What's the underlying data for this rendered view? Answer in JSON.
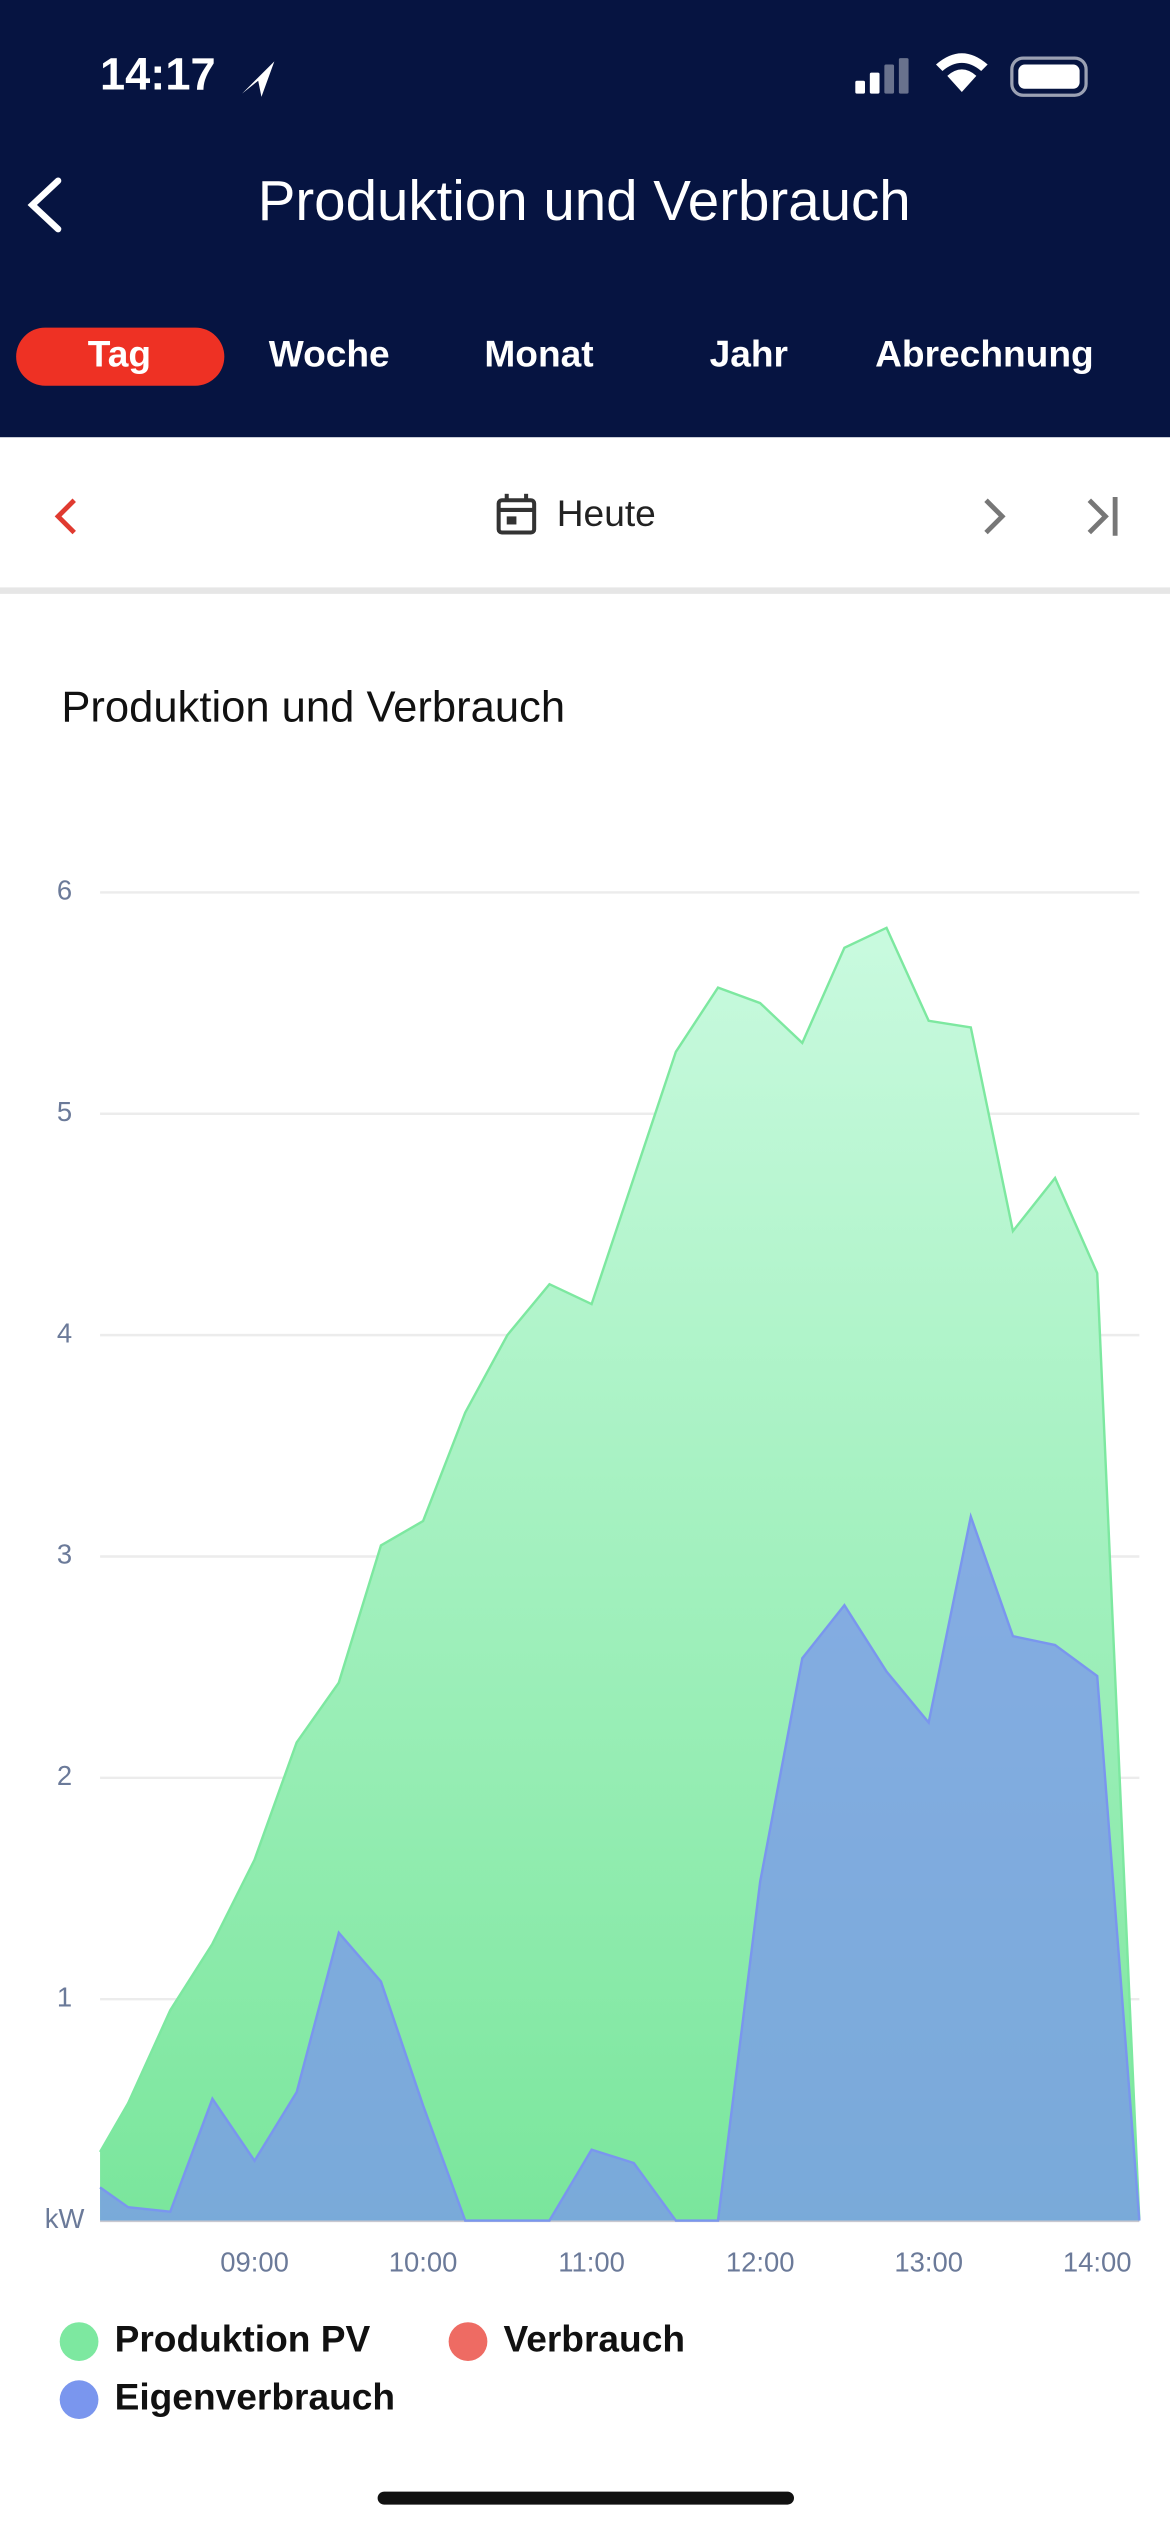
{
  "status_bar": {
    "time": "14:17"
  },
  "header": {
    "title": "Produktion und Verbrauch",
    "tabs": [
      "Tag",
      "Woche",
      "Monat",
      "Jahr",
      "Abrechnung"
    ],
    "active_tab": 0
  },
  "date_nav": {
    "label": "Heute"
  },
  "chart_data": {
    "type": "area",
    "title": "Produktion und Verbrauch",
    "x": [
      "08:05",
      "08:15",
      "08:30",
      "08:45",
      "09:00",
      "09:15",
      "09:30",
      "09:45",
      "10:00",
      "10:15",
      "10:30",
      "10:45",
      "11:00",
      "11:15",
      "11:30",
      "11:45",
      "12:00",
      "12:15",
      "12:30",
      "12:45",
      "13:00",
      "13:15",
      "13:30",
      "13:45",
      "14:00",
      "14:15"
    ],
    "series": [
      {
        "name": "Produktion PV",
        "color": "#7de8a0",
        "values": [
          0.31,
          0.53,
          0.95,
          1.25,
          1.63,
          2.16,
          2.43,
          3.05,
          3.16,
          3.65,
          4.0,
          4.23,
          4.14,
          4.71,
          5.28,
          5.57,
          5.5,
          5.32,
          5.75,
          5.84,
          5.42,
          5.39,
          4.47,
          4.71,
          4.28,
          0
        ]
      },
      {
        "name": "Verbrauch",
        "color": "#ee6b63",
        "values": [
          null,
          null,
          null,
          null,
          null,
          null,
          null,
          null,
          null,
          null,
          null,
          null,
          null,
          null,
          null,
          null,
          null,
          null,
          null,
          null,
          null,
          null,
          null,
          null,
          null,
          null
        ]
      },
      {
        "name": "Eigenverbrauch",
        "color": "#7a96ee",
        "values": [
          0.15,
          0.06,
          0.04,
          0.55,
          0.27,
          0.58,
          1.3,
          1.08,
          0.52,
          0,
          0,
          0,
          0.32,
          0.26,
          0,
          0,
          1.53,
          2.54,
          2.78,
          2.48,
          2.25,
          3.18,
          2.64,
          2.6,
          2.46,
          0
        ]
      }
    ],
    "xlim": [
      "08:05",
      "14:15"
    ],
    "xticks": [
      "09:00",
      "10:00",
      "11:00",
      "12:00",
      "13:00",
      "14:00"
    ],
    "ylim": [
      0,
      6
    ],
    "yticks": [
      {
        "value": 0,
        "label": "kW"
      },
      1,
      2,
      3,
      4,
      5,
      6
    ],
    "grid": true
  }
}
